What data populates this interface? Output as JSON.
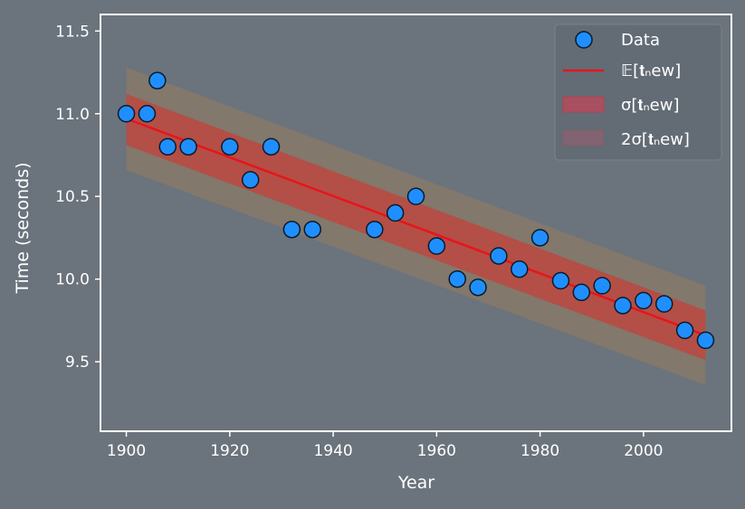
{
  "chart_data": {
    "type": "scatter",
    "xlabel": "Year",
    "ylabel": "Time (seconds)",
    "xlim": [
      1895,
      2017
    ],
    "ylim": [
      9.08,
      11.6
    ],
    "xticks": [
      1900,
      1920,
      1940,
      1960,
      1980,
      2000
    ],
    "yticks": [
      9.5,
      10.0,
      10.5,
      11.0,
      11.5
    ],
    "xtick_labels": [
      "1900",
      "1920",
      "1940",
      "1960",
      "1980",
      "2000"
    ],
    "ytick_labels": [
      "9.5",
      "10.0",
      "10.5",
      "11.0",
      "11.5"
    ],
    "grid": false,
    "legend_position": "top-right",
    "legend": {
      "data": "Data",
      "mean": "𝔼[𝐭ₙew]",
      "sigma": "σ[𝐭ₙew]",
      "two_sigma": "2σ[𝐭ₙew]"
    },
    "data": {
      "x": [
        1900,
        1904,
        1906,
        1908,
        1912,
        1920,
        1924,
        1928,
        1932,
        1936,
        1948,
        1952,
        1956,
        1960,
        1964,
        1968,
        1972,
        1976,
        1980,
        1984,
        1988,
        1992,
        1996,
        2000,
        2004,
        2008,
        2012
      ],
      "y": [
        11.0,
        11.0,
        11.2,
        10.8,
        10.8,
        10.8,
        10.6,
        10.8,
        10.3,
        10.3,
        10.3,
        10.4,
        10.5,
        10.2,
        10.0,
        9.95,
        10.14,
        10.06,
        10.25,
        9.99,
        9.92,
        9.96,
        9.84,
        9.87,
        9.85,
        9.69,
        9.63
      ]
    },
    "mean_line": {
      "x": [
        1900,
        2012
      ],
      "y": [
        10.97,
        9.66
      ]
    },
    "sigma_band": {
      "x": [
        1900,
        2012
      ],
      "lower": [
        10.81,
        9.51
      ],
      "upper": [
        11.12,
        9.81
      ]
    },
    "two_sigma_band": {
      "x": [
        1900,
        2012
      ],
      "lower": [
        10.66,
        9.36
      ],
      "upper": [
        11.28,
        9.96
      ]
    },
    "colors": {
      "background": "#6b737c",
      "marker": "#1f8fff",
      "mean": "#e8141c",
      "band": "#d2372f",
      "axes": "#ffffff",
      "legend_bg": "#636b74"
    }
  }
}
